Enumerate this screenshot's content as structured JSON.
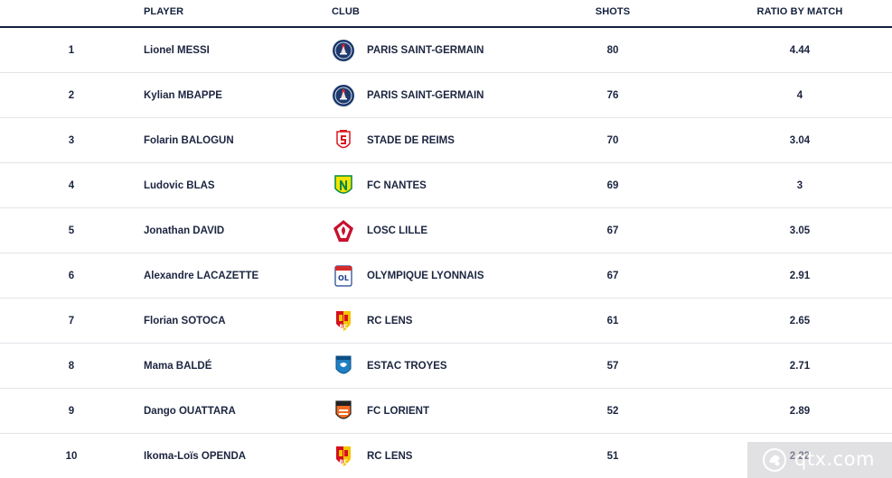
{
  "headers": {
    "player": "PLAYER",
    "club": "CLUB",
    "shots": "SHOTS",
    "ratio": "RATIO BY MATCH"
  },
  "rows": [
    {
      "rank": "1",
      "player": "Lionel MESSI",
      "club": "PARIS SAINT-GERMAIN",
      "crest": "psg-crest-icon",
      "shots": "80",
      "ratio": "4.44"
    },
    {
      "rank": "2",
      "player": "Kylian MBAPPE",
      "club": "PARIS SAINT-GERMAIN",
      "crest": "psg-crest-icon",
      "shots": "76",
      "ratio": "4"
    },
    {
      "rank": "3",
      "player": "Folarin BALOGUN",
      "club": "STADE DE REIMS",
      "crest": "reims-crest-icon",
      "shots": "70",
      "ratio": "3.04"
    },
    {
      "rank": "4",
      "player": "Ludovic BLAS",
      "club": "FC NANTES",
      "crest": "nantes-crest-icon",
      "shots": "69",
      "ratio": "3"
    },
    {
      "rank": "5",
      "player": "Jonathan DAVID",
      "club": "LOSC LILLE",
      "crest": "lille-crest-icon",
      "shots": "67",
      "ratio": "3.05"
    },
    {
      "rank": "6",
      "player": "Alexandre LACAZETTE",
      "club": "OLYMPIQUE LYONNAIS",
      "crest": "lyon-crest-icon",
      "shots": "67",
      "ratio": "2.91"
    },
    {
      "rank": "7",
      "player": "Florian SOTOCA",
      "club": "RC LENS",
      "crest": "lens-crest-icon",
      "shots": "61",
      "ratio": "2.65"
    },
    {
      "rank": "8",
      "player": "Mama BALDÉ",
      "club": "ESTAC TROYES",
      "crest": "troyes-crest-icon",
      "shots": "57",
      "ratio": "2.71"
    },
    {
      "rank": "9",
      "player": "Dango OUATTARA",
      "club": "FC LORIENT",
      "crest": "lorient-crest-icon",
      "shots": "52",
      "ratio": "2.89"
    },
    {
      "rank": "10",
      "player": "Ikoma-Loïs OPENDA",
      "club": "RC LENS",
      "crest": "lens-crest-icon",
      "shots": "51",
      "ratio": "2.22"
    }
  ],
  "watermark": {
    "text": "qtx.com",
    "icon": "watermark-logo-icon"
  },
  "colors": {
    "header_text": "#14213d",
    "header_rule": "#14213d",
    "row_divider": "#e2e4e8",
    "psg_blue": "#1d3a6e",
    "psg_red": "#d2232a",
    "reims_red": "#d71920",
    "nantes_yellow": "#f5e400",
    "nantes_green": "#008944",
    "lille_red": "#c8102e",
    "lens_red": "#d50f1f",
    "lens_yellow": "#f5c400",
    "troyes_blue": "#1e7fc2",
    "lorient_orange": "#f26b21",
    "lyon_red": "#d52b2b",
    "lyon_blue": "#1b3f8f"
  }
}
